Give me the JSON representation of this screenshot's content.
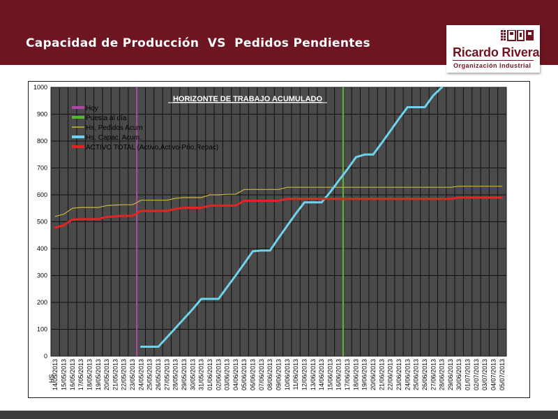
{
  "header": {
    "title": "Capacidad de Producción  VS  Pedidos Pendientes",
    "background_color": "#6d1520"
  },
  "logo": {
    "name": "Ricardo Rivera",
    "subtitle": "Organización Industrial",
    "color": "#6d1520"
  },
  "chart_data": {
    "type": "line",
    "title": "HORIZONTE DE TRABAJO ACUMULADO",
    "ylabel": "HS",
    "xlabel": "",
    "ylim": [
      0,
      1000
    ],
    "yticks": [
      0,
      100,
      200,
      300,
      400,
      500,
      600,
      700,
      800,
      900,
      1000
    ],
    "grid": true,
    "plot_background": "#4a4a4a",
    "legend_position": "top-left",
    "categories": [
      "14/05/2013",
      "15/05/2013",
      "16/05/2013",
      "17/05/2013",
      "18/05/2013",
      "19/05/2013",
      "20/05/2013",
      "21/05/2013",
      "22/05/2013",
      "23/05/2013",
      "24/05/2013",
      "25/05/2013",
      "26/05/2013",
      "27/05/2013",
      "28/05/2013",
      "29/05/2013",
      "30/05/2013",
      "31/05/2013",
      "01/06/2013",
      "02/06/2013",
      "03/06/2013",
      "04/06/2013",
      "05/06/2013",
      "06/06/2013",
      "07/06/2013",
      "08/06/2013",
      "09/06/2013",
      "10/06/2013",
      "11/06/2013",
      "12/06/2013",
      "13/06/2013",
      "14/06/2013",
      "15/06/2013",
      "16/06/2013",
      "17/06/2013",
      "18/06/2013",
      "19/06/2013",
      "20/06/2013",
      "21/06/2013",
      "22/06/2013",
      "23/06/2013",
      "24/06/2013",
      "25/06/2013",
      "26/06/2013",
      "27/06/2013",
      "28/06/2013",
      "29/06/2013",
      "30/06/2013",
      "01/07/2013",
      "02/07/2013",
      "03/07/2013",
      "04/07/2013",
      "05/07/2013"
    ],
    "vertical_markers": [
      {
        "name": "Hoy",
        "x": "24/05/2013",
        "color": "#b04aa6"
      },
      {
        "name": "Puesta al día",
        "x": "17/06/2013",
        "color": "#5cb531"
      }
    ],
    "series": [
      {
        "name": "Hs. Pedidos Acum",
        "color": "#cdb53a",
        "width": 1.2,
        "values": [
          520,
          528,
          550,
          553,
          553,
          553,
          560,
          562,
          563,
          563,
          580,
          580,
          580,
          580,
          587,
          590,
          590,
          590,
          600,
          600,
          602,
          602,
          620,
          620,
          620,
          620,
          620,
          628,
          628,
          628,
          628,
          628,
          628,
          628,
          628,
          628,
          628,
          628,
          628,
          628,
          628,
          628,
          628,
          628,
          628,
          628,
          628,
          632,
          632,
          632,
          632,
          632,
          632
        ]
      },
      {
        "name": "Hs. Capac. Acum.",
        "color": "#6ed4ec",
        "width": 3,
        "values": [
          null,
          null,
          null,
          null,
          null,
          null,
          null,
          null,
          null,
          null,
          35,
          35,
          35,
          70,
          105,
          140,
          175,
          213,
          213,
          213,
          257,
          300,
          345,
          390,
          393,
          393,
          440,
          485,
          530,
          572,
          572,
          572,
          610,
          653,
          695,
          740,
          750,
          750,
          793,
          838,
          883,
          926,
          926,
          926,
          970,
          1000,
          null,
          null,
          null,
          null,
          null,
          null,
          null
        ]
      },
      {
        "name": "ACTIVO TOTAL (Activo,Activo-Prio,Repac)",
        "color": "#e22423",
        "width": 3,
        "values": [
          478,
          487,
          508,
          510,
          510,
          510,
          518,
          520,
          522,
          522,
          540,
          540,
          540,
          540,
          548,
          552,
          552,
          552,
          560,
          560,
          560,
          560,
          578,
          578,
          578,
          578,
          578,
          585,
          585,
          585,
          585,
          585,
          585,
          585,
          585,
          585,
          585,
          585,
          585,
          585,
          585,
          585,
          585,
          585,
          585,
          585,
          585,
          590,
          590,
          590,
          590,
          590,
          590
        ]
      }
    ]
  }
}
